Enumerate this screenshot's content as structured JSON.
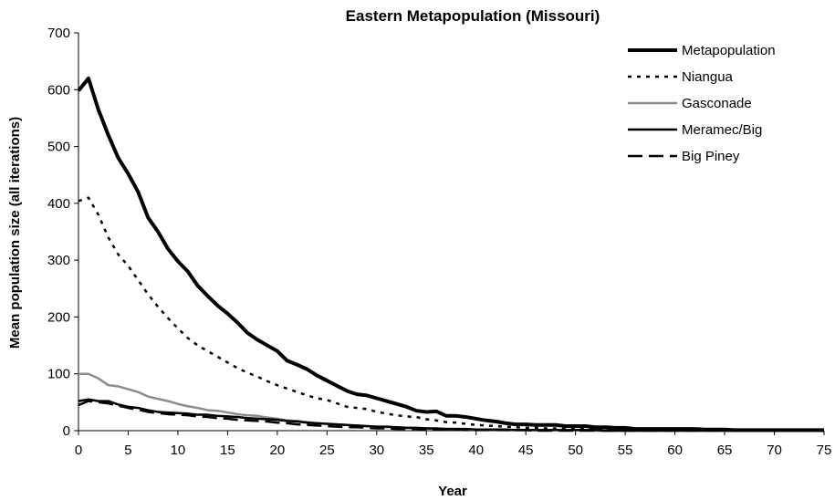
{
  "chart_data": {
    "type": "line",
    "title": "Eastern Metapopulation (Missouri)",
    "xlabel": "Year",
    "ylabel": "Mean population size (all iterations)",
    "xlim": [
      0,
      75
    ],
    "ylim": [
      0,
      700
    ],
    "xticks": [
      "0",
      "5",
      "10",
      "15",
      "20",
      "25",
      "30",
      "35",
      "40",
      "45",
      "50",
      "55",
      "60",
      "65",
      "70",
      "75"
    ],
    "yticks": [
      "0",
      "100",
      "200",
      "300",
      "400",
      "500",
      "600",
      "700"
    ],
    "grid": false,
    "legend_position": "top-right",
    "series": [
      {
        "name": "Metapopulation",
        "color": "#000000",
        "style": "solid-thick",
        "x": [
          0,
          1,
          2,
          3,
          4,
          5,
          6,
          7,
          8,
          9,
          10,
          11,
          12,
          13,
          14,
          15,
          16,
          17,
          18,
          19,
          20,
          21,
          22,
          23,
          24,
          25,
          26,
          27,
          28,
          29,
          30,
          31,
          32,
          33,
          34,
          35,
          36,
          37,
          38,
          39,
          40,
          41,
          42,
          43,
          44,
          45,
          46,
          47,
          48,
          49,
          50,
          51,
          52,
          53,
          54,
          55,
          56,
          57,
          58,
          59,
          60,
          61,
          62,
          63,
          64,
          65,
          66,
          67,
          68,
          69,
          70,
          71,
          72,
          73,
          74,
          75
        ],
        "values": [
          598,
          620,
          565,
          520,
          480,
          452,
          420,
          375,
          350,
          320,
          298,
          280,
          255,
          237,
          220,
          206,
          190,
          172,
          160,
          150,
          140,
          123,
          116,
          108,
          97,
          88,
          79,
          70,
          64,
          62,
          57,
          52,
          47,
          42,
          35,
          33,
          34,
          26,
          26,
          24,
          21,
          18,
          16,
          13,
          11,
          11,
          10,
          10,
          10,
          8,
          8,
          8,
          6,
          6,
          5,
          5,
          3,
          3,
          3,
          3,
          3,
          3,
          3,
          2,
          2,
          2,
          1,
          1,
          1,
          1,
          1,
          1,
          1,
          1,
          1,
          1
        ]
      },
      {
        "name": "Niangua",
        "color": "#000000",
        "style": "dotted",
        "x": [
          0,
          1,
          2,
          3,
          4,
          5,
          6,
          7,
          8,
          9,
          10,
          11,
          12,
          13,
          14,
          15,
          16,
          17,
          18,
          19,
          20,
          21,
          22,
          23,
          24,
          25,
          26,
          27,
          28,
          29,
          30,
          31,
          32,
          33,
          34,
          35,
          36,
          37,
          38,
          39,
          40,
          41,
          42,
          43,
          44,
          45,
          46,
          47,
          48,
          49,
          50,
          51,
          52,
          53,
          54,
          55,
          56,
          57,
          58,
          59,
          60,
          61,
          62,
          63,
          64,
          65,
          66,
          67,
          68,
          69,
          70,
          71,
          72,
          73,
          74,
          75
        ],
        "values": [
          404,
          410,
          380,
          340,
          310,
          290,
          265,
          240,
          218,
          198,
          180,
          163,
          150,
          140,
          130,
          120,
          110,
          102,
          95,
          87,
          80,
          74,
          68,
          62,
          57,
          54,
          48,
          42,
          40,
          38,
          33,
          30,
          27,
          25,
          24,
          20,
          18,
          15,
          14,
          12,
          10,
          9,
          8,
          7,
          6,
          5,
          5,
          4,
          4,
          3,
          3,
          3,
          2,
          2,
          2,
          2,
          1,
          1,
          1,
          1,
          1,
          1,
          1,
          1,
          1,
          1,
          0,
          0,
          0,
          0,
          0,
          0,
          0,
          0,
          0,
          0
        ]
      },
      {
        "name": "Gasconade",
        "color": "#8c8c8c",
        "style": "solid",
        "x": [
          0,
          1,
          2,
          3,
          4,
          5,
          6,
          7,
          8,
          9,
          10,
          11,
          12,
          13,
          14,
          15,
          16,
          17,
          18,
          19,
          20,
          21,
          22,
          23,
          24,
          25,
          26,
          27,
          28,
          29,
          30,
          31,
          32,
          33,
          34,
          35,
          36,
          37,
          38,
          39,
          40,
          41,
          42,
          43,
          44,
          45,
          46,
          47,
          48,
          49,
          50,
          51,
          52,
          53,
          54,
          55,
          56,
          57,
          58,
          59,
          60,
          61,
          62,
          63,
          64,
          65,
          66,
          67,
          68,
          69,
          70,
          71,
          72,
          73,
          74,
          75
        ],
        "values": [
          100,
          100,
          92,
          80,
          78,
          73,
          68,
          60,
          56,
          52,
          47,
          43,
          40,
          36,
          35,
          32,
          29,
          27,
          26,
          23,
          21,
          18,
          17,
          15,
          13,
          12,
          11,
          10,
          9,
          8,
          7,
          6,
          6,
          5,
          4,
          4,
          3,
          3,
          3,
          2,
          2,
          2,
          2,
          1,
          1,
          1,
          1,
          1,
          1,
          1,
          1,
          1,
          0,
          0,
          0,
          0,
          0,
          0,
          0,
          0,
          0,
          0,
          0,
          0,
          0,
          0,
          0,
          0,
          0,
          0,
          0,
          0,
          0,
          0,
          0,
          0
        ]
      },
      {
        "name": "Meramec/Big",
        "color": "#000000",
        "style": "solid",
        "x": [
          0,
          1,
          2,
          3,
          4,
          5,
          6,
          7,
          8,
          9,
          10,
          11,
          12,
          13,
          14,
          15,
          16,
          17,
          18,
          19,
          20,
          21,
          22,
          23,
          24,
          25,
          26,
          27,
          28,
          29,
          30,
          31,
          32,
          33,
          34,
          35,
          36,
          37,
          38,
          39,
          40,
          41,
          42,
          43,
          44,
          45,
          46,
          47,
          48,
          49,
          50,
          51,
          52,
          53,
          54,
          55,
          56,
          57,
          58,
          59,
          60,
          61,
          62,
          63,
          64,
          65,
          66,
          67,
          68,
          69,
          70,
          71,
          72,
          73,
          74,
          75
        ],
        "values": [
          52,
          55,
          52,
          52,
          46,
          42,
          40,
          36,
          33,
          32,
          31,
          30,
          28,
          28,
          26,
          25,
          24,
          22,
          21,
          20,
          19,
          17,
          16,
          14,
          13,
          12,
          11,
          10,
          9,
          8,
          7,
          7,
          6,
          5,
          5,
          4,
          4,
          3,
          3,
          3,
          2,
          2,
          2,
          2,
          1,
          1,
          1,
          1,
          1,
          1,
          1,
          1,
          1,
          0,
          0,
          0,
          0,
          0,
          0,
          0,
          0,
          0,
          0,
          0,
          0,
          0,
          0,
          0,
          0,
          0,
          0,
          0,
          0,
          0,
          0,
          0
        ]
      },
      {
        "name": "Big Piney",
        "color": "#000000",
        "style": "dashed",
        "x": [
          0,
          1,
          2,
          3,
          4,
          5,
          6,
          7,
          8,
          9,
          10,
          11,
          12,
          13,
          14,
          15,
          16,
          17,
          18,
          19,
          20,
          21,
          22,
          23,
          24,
          25,
          26,
          27,
          28,
          29,
          30,
          31,
          32,
          33,
          34,
          35,
          36,
          37,
          38,
          39,
          40,
          41,
          42,
          43,
          44,
          45,
          46,
          47,
          48,
          49,
          50,
          51,
          52,
          53,
          54,
          55,
          56,
          57,
          58,
          59,
          60,
          61,
          62,
          63,
          64,
          65,
          66,
          67,
          68,
          69,
          70,
          71,
          72,
          73,
          74,
          75
        ],
        "values": [
          45,
          52,
          50,
          48,
          44,
          40,
          37,
          33,
          31,
          29,
          28,
          27,
          25,
          24,
          22,
          21,
          19,
          18,
          17,
          16,
          14,
          13,
          11,
          10,
          9,
          8,
          7,
          6,
          6,
          5,
          4,
          4,
          3,
          3,
          3,
          2,
          2,
          2,
          2,
          1,
          1,
          1,
          1,
          1,
          1,
          1,
          0,
          0,
          0,
          0,
          0,
          0,
          0,
          0,
          0,
          0,
          0,
          0,
          0,
          0,
          0,
          0,
          0,
          0,
          0,
          0,
          0,
          0,
          0,
          0,
          0,
          0,
          0,
          0,
          0,
          0
        ]
      }
    ]
  }
}
